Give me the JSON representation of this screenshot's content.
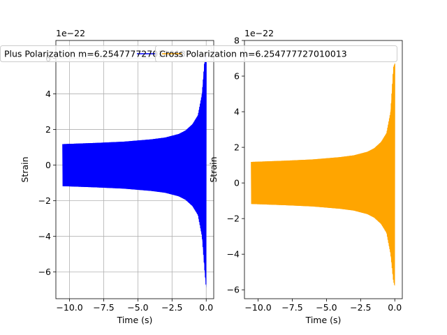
{
  "chart_data": [
    {
      "type": "line",
      "panel": "left",
      "offset_text": "1e−22",
      "xlabel": "Time (s)",
      "ylabel": "Strain",
      "xlim": [
        -11.0,
        0.55
      ],
      "ylim": [
        -7.5,
        7.0
      ],
      "xticks": [
        -10.0,
        -7.5,
        -5.0,
        -2.5,
        0.0
      ],
      "xtick_labels": [
        "−10.0",
        "−7.5",
        "−5.0",
        "−2.5",
        "0.0"
      ],
      "yticks": [
        -6,
        -4,
        -2,
        0,
        2,
        4,
        6
      ],
      "ytick_labels": [
        "−6",
        "−4",
        "−2",
        "0",
        "2",
        "4",
        "6"
      ],
      "grid": true,
      "legend_placement": "top",
      "series": [
        {
          "name": "Plus Polarization m=6.254777727010013",
          "color": "#0000ff",
          "envelope_x": [
            -10.5,
            -8.0,
            -6.0,
            -4.0,
            -3.0,
            -2.0,
            -1.5,
            -1.0,
            -0.6,
            -0.3,
            -0.1,
            0.0
          ],
          "envelope_upper": [
            1.18,
            1.25,
            1.32,
            1.45,
            1.55,
            1.75,
            1.95,
            2.3,
            2.8,
            4.0,
            6.0,
            6.2
          ],
          "envelope_lower": [
            -1.18,
            -1.25,
            -1.32,
            -1.45,
            -1.55,
            -1.75,
            -1.95,
            -2.3,
            -2.8,
            -4.0,
            -6.0,
            -6.9
          ]
        }
      ]
    },
    {
      "type": "line",
      "panel": "right",
      "offset_text": "1e−22",
      "xlabel": "Time (s)",
      "ylabel": "Strain",
      "xlim": [
        -11.0,
        0.55
      ],
      "ylim": [
        -6.5,
        8.0
      ],
      "xticks": [
        -10.0,
        -7.5,
        -5.0,
        -2.5,
        0.0
      ],
      "xtick_labels": [
        "−10.0",
        "−7.5",
        "−5.0",
        "−2.5",
        "0.0"
      ],
      "yticks": [
        -6,
        -4,
        -2,
        0,
        2,
        4,
        6,
        8
      ],
      "ytick_labels": [
        "−6",
        "−4",
        "−2",
        "0",
        "2",
        "4",
        "6",
        "8"
      ],
      "grid": false,
      "legend_placement": "top",
      "series": [
        {
          "name": "Cross Polarization m=6.254777727010013",
          "color": "#ffa500",
          "envelope_x": [
            -10.5,
            -8.0,
            -6.0,
            -4.0,
            -3.0,
            -2.0,
            -1.5,
            -1.0,
            -0.6,
            -0.3,
            -0.1,
            0.0
          ],
          "envelope_upper": [
            1.18,
            1.25,
            1.32,
            1.45,
            1.55,
            1.75,
            1.95,
            2.3,
            2.8,
            4.0,
            6.5,
            6.7
          ],
          "envelope_lower": [
            -1.18,
            -1.25,
            -1.32,
            -1.45,
            -1.55,
            -1.75,
            -1.95,
            -2.3,
            -2.8,
            -4.0,
            -5.5,
            -5.8
          ]
        }
      ]
    }
  ]
}
